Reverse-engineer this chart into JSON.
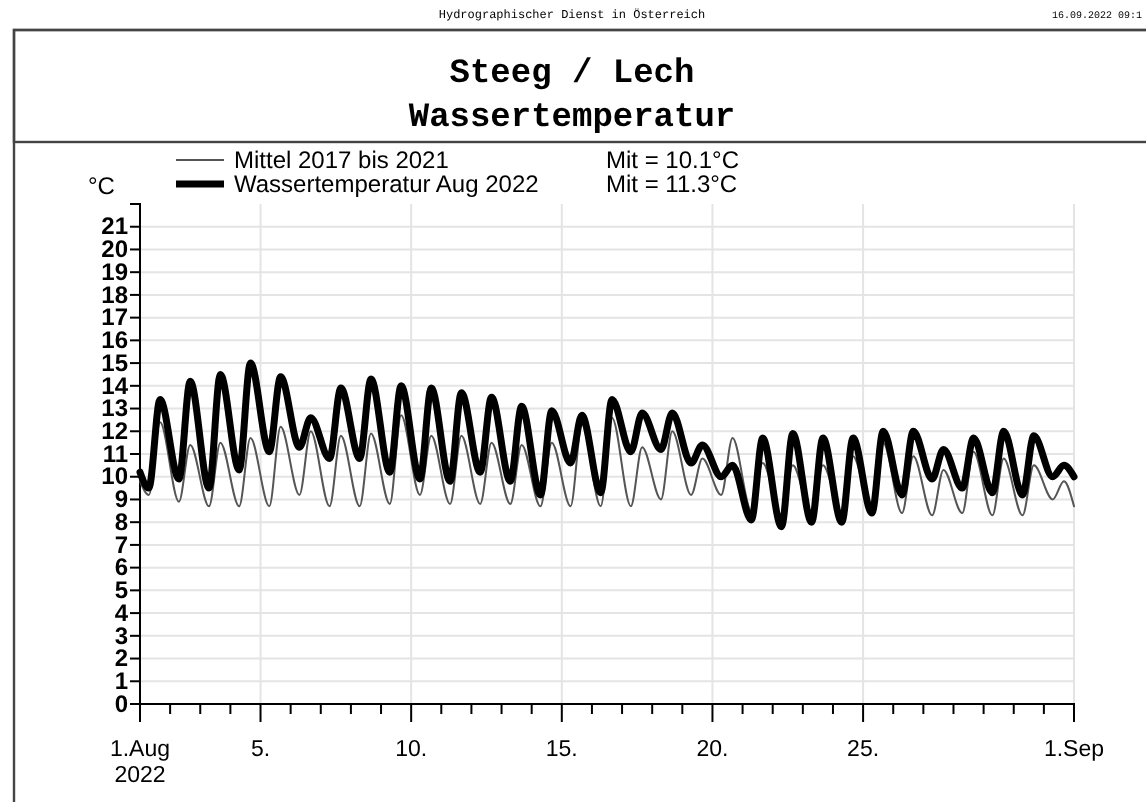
{
  "chart_data": {
    "type": "line",
    "title": "Steeg / Lech",
    "subtitle": "Wassertemperatur",
    "ylabel": "°C",
    "annotations": [
      "Hydrographischer Dienst in Österreich",
      "16.09.2022 09:1",
      "Mit = 10.1°C",
      "Mit = 11.3°C"
    ],
    "x": [
      "2022-08-01T00:00",
      "2022-08-01T07:00",
      "2022-08-01T16:00",
      "2022-08-02T07:00",
      "2022-08-02T16:00",
      "2022-08-03T07:00",
      "2022-08-03T16:00",
      "2022-08-04T07:00",
      "2022-08-04T16:00",
      "2022-08-05T07:00",
      "2022-08-05T16:00",
      "2022-08-06T07:00",
      "2022-08-06T16:00",
      "2022-08-07T07:00",
      "2022-08-07T16:00",
      "2022-08-08T07:00",
      "2022-08-08T16:00",
      "2022-08-09T07:00",
      "2022-08-09T16:00",
      "2022-08-10T07:00",
      "2022-08-10T16:00",
      "2022-08-11T07:00",
      "2022-08-11T16:00",
      "2022-08-12T07:00",
      "2022-08-12T16:00",
      "2022-08-13T07:00",
      "2022-08-13T16:00",
      "2022-08-14T07:00",
      "2022-08-14T16:00",
      "2022-08-15T07:00",
      "2022-08-15T16:00",
      "2022-08-16T07:00",
      "2022-08-16T16:00",
      "2022-08-17T07:00",
      "2022-08-17T16:00",
      "2022-08-18T07:00",
      "2022-08-18T16:00",
      "2022-08-19T07:00",
      "2022-08-19T16:00",
      "2022-08-20T07:00",
      "2022-08-20T16:00",
      "2022-08-21T07:00",
      "2022-08-21T16:00",
      "2022-08-22T07:00",
      "2022-08-22T16:00",
      "2022-08-23T07:00",
      "2022-08-23T16:00",
      "2022-08-24T07:00",
      "2022-08-24T16:00",
      "2022-08-25T07:00",
      "2022-08-25T16:00",
      "2022-08-26T07:00",
      "2022-08-26T16:00",
      "2022-08-27T07:00",
      "2022-08-27T16:00",
      "2022-08-28T07:00",
      "2022-08-28T16:00",
      "2022-08-29T07:00",
      "2022-08-29T16:00",
      "2022-08-30T07:00",
      "2022-08-30T16:00",
      "2022-08-31T07:00",
      "2022-08-31T16:00",
      "2022-09-01T00:00"
    ],
    "series": [
      {
        "name": "Mittel 2017 bis 2021",
        "color": "#555555",
        "values": [
          9.8,
          9.2,
          12.4,
          8.9,
          11.4,
          8.7,
          11.5,
          8.7,
          11.7,
          8.7,
          12.2,
          9.2,
          12.0,
          8.7,
          11.8,
          8.7,
          11.9,
          8.8,
          12.7,
          9.2,
          11.8,
          8.8,
          11.8,
          8.8,
          11.5,
          8.8,
          11.4,
          8.7,
          11.5,
          8.7,
          12.3,
          8.7,
          12.6,
          8.7,
          11.3,
          9.0,
          12.0,
          9.2,
          10.8,
          9.2,
          11.7,
          8.5,
          10.6,
          8.3,
          10.5,
          8.3,
          10.5,
          8.4,
          10.9,
          8.4,
          11.5,
          8.4,
          10.9,
          8.3,
          10.3,
          8.4,
          11.1,
          8.3,
          10.8,
          8.3,
          10.5,
          9.0,
          9.8,
          8.7
        ]
      },
      {
        "name": "Wassertemperatur Aug 2022",
        "color": "#000000",
        "values": [
          10.2,
          9.5,
          13.4,
          9.9,
          14.2,
          9.5,
          14.5,
          10.3,
          15.0,
          11.1,
          14.4,
          11.3,
          12.6,
          10.8,
          13.9,
          10.8,
          14.3,
          10.2,
          14.0,
          9.9,
          13.9,
          9.8,
          13.7,
          10.2,
          13.5,
          9.8,
          13.1,
          9.2,
          12.9,
          10.6,
          12.7,
          9.3,
          13.4,
          11.1,
          12.8,
          11.2,
          12.8,
          10.6,
          11.4,
          10.0,
          10.5,
          8.1,
          11.7,
          7.8,
          11.9,
          8.0,
          11.7,
          8.0,
          11.7,
          8.4,
          12.0,
          9.2,
          12.0,
          9.9,
          11.2,
          9.5,
          11.7,
          9.3,
          12.0,
          9.2,
          11.8,
          10.0,
          10.5,
          10.0
        ]
      }
    ],
    "xlim": [
      "2022-08-01",
      "2022-09-01"
    ],
    "xticks": [
      {
        "value": "2022-08-01",
        "label": "1.Aug\n2022"
      },
      {
        "value": "2022-08-02",
        "label": null
      },
      {
        "value": "2022-08-03",
        "label": null
      },
      {
        "value": "2022-08-04",
        "label": null
      },
      {
        "value": "2022-08-05",
        "label": "5."
      },
      {
        "value": "2022-08-06",
        "label": null
      },
      {
        "value": "2022-08-07",
        "label": null
      },
      {
        "value": "2022-08-08",
        "label": null
      },
      {
        "value": "2022-08-09",
        "label": null
      },
      {
        "value": "2022-08-10",
        "label": "10."
      },
      {
        "value": "2022-08-11",
        "label": null
      },
      {
        "value": "2022-08-12",
        "label": null
      },
      {
        "value": "2022-08-13",
        "label": null
      },
      {
        "value": "2022-08-14",
        "label": null
      },
      {
        "value": "2022-08-15",
        "label": "15."
      },
      {
        "value": "2022-08-16",
        "label": null
      },
      {
        "value": "2022-08-17",
        "label": null
      },
      {
        "value": "2022-08-18",
        "label": null
      },
      {
        "value": "2022-08-19",
        "label": null
      },
      {
        "value": "2022-08-20",
        "label": "20."
      },
      {
        "value": "2022-08-21",
        "label": null
      },
      {
        "value": "2022-08-22",
        "label": null
      },
      {
        "value": "2022-08-23",
        "label": null
      },
      {
        "value": "2022-08-24",
        "label": null
      },
      {
        "value": "2022-08-25",
        "label": "25."
      },
      {
        "value": "2022-08-26",
        "label": null
      },
      {
        "value": "2022-08-27",
        "label": null
      },
      {
        "value": "2022-08-28",
        "label": null
      },
      {
        "value": "2022-08-29",
        "label": null
      },
      {
        "value": "2022-08-30",
        "label": null
      },
      {
        "value": "2022-08-31",
        "label": null
      },
      {
        "value": "2022-09-01",
        "label": "1.Sep"
      }
    ],
    "ylim": [
      0,
      22
    ],
    "yticks": [
      0,
      1,
      2,
      3,
      4,
      5,
      6,
      7,
      8,
      9,
      10,
      11,
      12,
      13,
      14,
      15,
      16,
      17,
      18,
      19,
      20,
      21
    ],
    "grid": true,
    "legend": "top left",
    "marker": "none",
    "line_style": "solid"
  }
}
